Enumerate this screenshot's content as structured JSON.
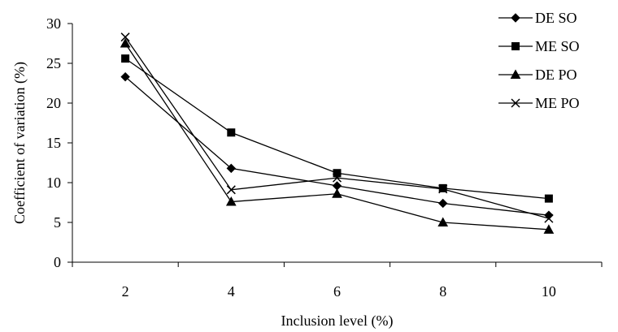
{
  "chart_data": {
    "type": "line",
    "title": "",
    "xlabel": "Inclusion level (%)",
    "ylabel": "Coefficient of variation (%)",
    "x": [
      2,
      4,
      6,
      8,
      10
    ],
    "xticks": [
      "2",
      "4",
      "6",
      "8",
      "10"
    ],
    "yticks": [
      "0",
      "5",
      "10",
      "15",
      "20",
      "25",
      "30"
    ],
    "ylim": [
      0,
      30
    ],
    "grid": false,
    "legend_position": "right",
    "series": [
      {
        "name": "DE SO",
        "marker": "diamond",
        "values": [
          23.3,
          11.8,
          9.6,
          7.4,
          5.9
        ]
      },
      {
        "name": "ME SO",
        "marker": "square",
        "values": [
          25.6,
          16.3,
          11.2,
          9.3,
          8.0
        ]
      },
      {
        "name": "DE PO",
        "marker": "triangle",
        "values": [
          27.5,
          7.6,
          8.6,
          5.0,
          4.1
        ]
      },
      {
        "name": "ME PO",
        "marker": "x",
        "values": [
          28.3,
          9.1,
          10.6,
          9.2,
          5.5
        ]
      }
    ]
  }
}
